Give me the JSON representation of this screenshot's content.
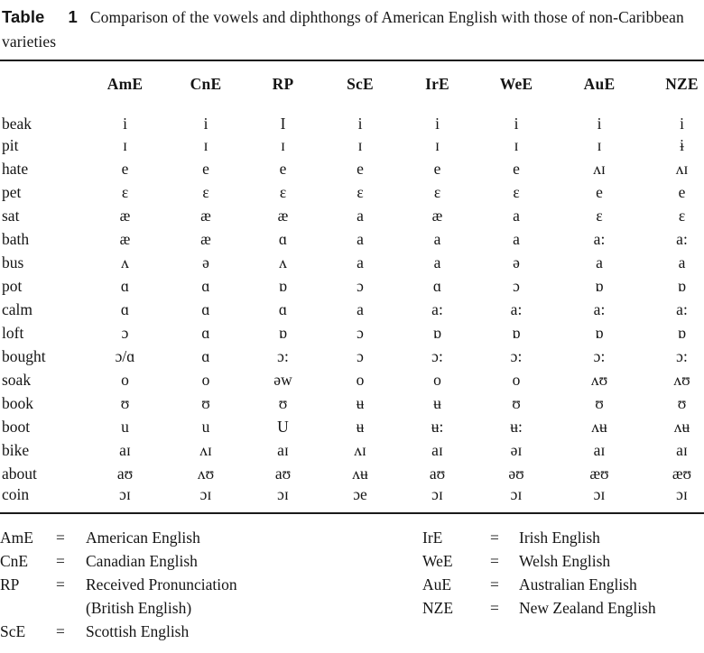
{
  "title": {
    "label": "Table",
    "number": "1",
    "text": "Comparison of the vowels and diphthongs of American English with those of non-Caribbean varieties"
  },
  "table": {
    "columns": [
      "AmE",
      "CnE",
      "RP",
      "ScE",
      "IrE",
      "WeE",
      "AuE",
      "NZE"
    ],
    "rows": [
      {
        "word": "beak",
        "values": [
          "i",
          "i",
          "I",
          "i",
          "i",
          "i",
          "i",
          "i"
        ]
      },
      {
        "word": "pit",
        "values": [
          "ɪ",
          "ɪ",
          "ɪ",
          "ɪ",
          "ɪ",
          "ɪ",
          "ɪ",
          "ɨ"
        ]
      },
      {
        "word": "hate",
        "values": [
          "e",
          "e",
          "e",
          "e",
          "e",
          "e",
          "ʌɪ",
          "ʌɪ"
        ]
      },
      {
        "word": "pet",
        "values": [
          "ɛ",
          "ɛ",
          "ɛ",
          "ɛ",
          "ɛ",
          "ɛ",
          "e",
          "e"
        ]
      },
      {
        "word": "sat",
        "values": [
          "æ",
          "æ",
          "æ",
          "a",
          "æ",
          "a",
          "ɛ",
          "ɛ"
        ]
      },
      {
        "word": "bath",
        "values": [
          "æ",
          "æ",
          "ɑ",
          "a",
          "a",
          "a",
          "a:",
          "a:"
        ]
      },
      {
        "word": "bus",
        "values": [
          "ʌ",
          "ə",
          "ʌ",
          "a",
          "a",
          "ə",
          "a",
          "a"
        ]
      },
      {
        "word": "pot",
        "values": [
          "ɑ",
          "ɑ",
          "ɒ",
          "ɔ",
          "ɑ",
          "ɔ",
          "ɒ",
          "ɒ"
        ]
      },
      {
        "word": "calm",
        "values": [
          "ɑ",
          "ɑ",
          "ɑ",
          "a",
          "a:",
          "a:",
          "a:",
          "a:"
        ]
      },
      {
        "word": "loft",
        "values": [
          "ɔ",
          "ɑ",
          "ɒ",
          "ɔ",
          "ɒ",
          "ɒ",
          "ɒ",
          "ɒ"
        ]
      },
      {
        "word": "bought",
        "values": [
          "ɔ/ɑ",
          "ɑ",
          "ɔ:",
          "ɔ",
          "ɔ:",
          "ɔ:",
          "ɔ:",
          "ɔ:"
        ]
      },
      {
        "word": "soak",
        "values": [
          "o",
          "o",
          "əw",
          "o",
          "o",
          "o",
          "ʌʊ",
          "ʌʊ"
        ]
      },
      {
        "word": "book",
        "values": [
          "ʊ",
          "ʊ",
          "ʊ",
          "ʉ",
          "ʉ",
          "ʊ",
          "ʊ",
          "ʊ"
        ]
      },
      {
        "word": "boot",
        "values": [
          "u",
          "u",
          "U",
          "ʉ",
          "ʉ:",
          "ʉ:",
          "ʌʉ",
          "ʌʉ"
        ]
      },
      {
        "word": "bike",
        "values": [
          "aɪ",
          "ʌɪ",
          "aɪ",
          "ʌɪ",
          "aɪ",
          "əɪ",
          "aɪ",
          "aɪ"
        ]
      },
      {
        "word": "about",
        "values": [
          "aʊ",
          "ʌʊ",
          "aʊ",
          "ʌʉ",
          "aʊ",
          "əʊ",
          "æʊ",
          "æʊ"
        ]
      },
      {
        "word": "coin",
        "values": [
          "ɔɪ",
          "ɔɪ",
          "ɔɪ",
          "ɔe",
          "ɔɪ",
          "ɔɪ",
          "ɔɪ",
          "ɔɪ"
        ]
      }
    ]
  },
  "legend": {
    "equals": "=",
    "left": [
      {
        "abbr": "AmE",
        "definition": "American English"
      },
      {
        "abbr": "CnE",
        "definition": "Canadian English"
      },
      {
        "abbr": "RP",
        "definition": "Received Pronunciation",
        "definition2": "(British English)"
      },
      {
        "abbr": "ScE",
        "definition": "Scottish English"
      }
    ],
    "right": [
      {
        "abbr": "IrE",
        "definition": "Irish English"
      },
      {
        "abbr": "WeE",
        "definition": "Welsh English"
      },
      {
        "abbr": "AuE",
        "definition": "Australian English"
      },
      {
        "abbr": "NZE",
        "definition": "New Zealand English"
      }
    ]
  }
}
